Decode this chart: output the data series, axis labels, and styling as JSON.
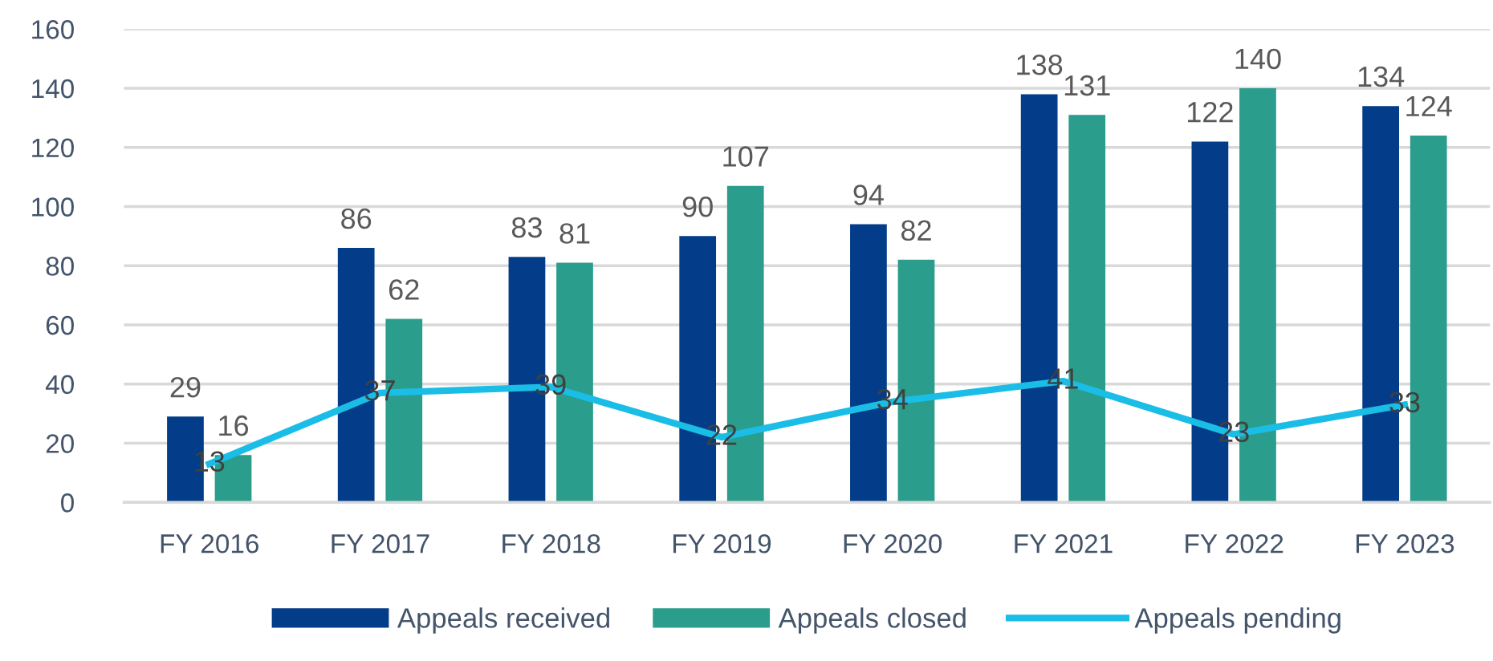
{
  "chart_data": {
    "type": "bar",
    "categories": [
      "FY 2016",
      "FY 2017",
      "FY 2018",
      "FY 2019",
      "FY 2020",
      "FY 2021",
      "FY 2022",
      "FY 2023"
    ],
    "series": [
      {
        "name": "Appeals received",
        "color": "#033d89",
        "values": [
          29,
          86,
          83,
          90,
          94,
          138,
          122,
          134
        ]
      },
      {
        "name": "Appeals closed",
        "color": "#2a9d8c",
        "values": [
          16,
          62,
          81,
          107,
          82,
          131,
          140,
          124
        ]
      },
      {
        "name": "Appeals pending",
        "type": "line",
        "color": "#1abde6",
        "values": [
          13,
          37,
          39,
          22,
          34,
          41,
          23,
          33
        ]
      }
    ],
    "ylim": [
      0,
      160
    ],
    "yticks": [
      0,
      20,
      40,
      60,
      80,
      100,
      120,
      140,
      160
    ],
    "grid": "y",
    "legend": "bottom",
    "data_labels": true
  }
}
